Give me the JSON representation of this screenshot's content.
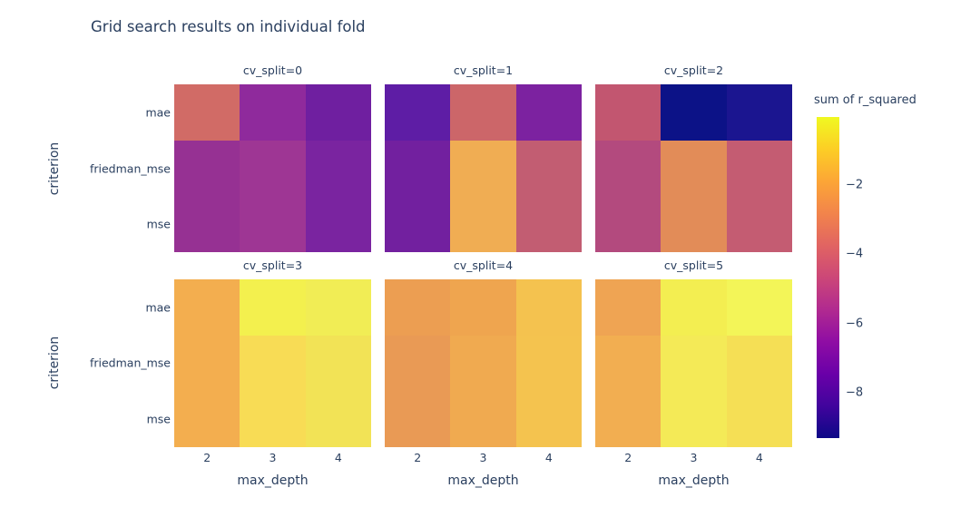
{
  "title": "Grid search results on individual fold",
  "styles": {
    "text_color": "#2a3f5f",
    "background": "#ffffff"
  },
  "axes": {
    "x_title": "max_depth",
    "y_title": "criterion",
    "x_ticks": [
      "2",
      "3",
      "4"
    ],
    "y_ticks": [
      "mae",
      "friedman_mse",
      "mse"
    ]
  },
  "colorbar": {
    "title": "sum of r_squared",
    "tick_labels": [
      "−2",
      "−4",
      "−6",
      "−8"
    ],
    "ticks": [
      -2,
      -4,
      -6,
      -8
    ],
    "gradient_top_to_bottom": [
      "#f0f921",
      "#fcce25",
      "#fca636",
      "#f2844b",
      "#e16462",
      "#cc4778",
      "#b12a90",
      "#8f0da4",
      "#6a00a8",
      "#41049d",
      "#0d0887"
    ]
  },
  "chart_data": {
    "type": "heatmap",
    "title": "Grid search results on individual fold",
    "xlabel": "max_depth",
    "ylabel": "criterion",
    "colorbar_label": "sum of r_squared",
    "colorscale": "plasma",
    "zmin": -9.3,
    "zmax": -0.05,
    "columns": [
      2,
      3,
      4
    ],
    "rows": [
      "mae",
      "friedman_mse",
      "mse"
    ],
    "facet_layout": {
      "grid": "2 rows x 3 cols",
      "shared_x": true,
      "shared_y": true
    },
    "facets": [
      {
        "label": "cv_split=0",
        "values": [
          [
            -4.4,
            -6.8,
            -7.4
          ],
          [
            -6.5,
            -6.2,
            -7.2
          ],
          [
            -6.5,
            -6.2,
            -7.2
          ]
        ],
        "colors": [
          [
            "#d16b66",
            "#8f2a9c",
            "#6f1fa0"
          ],
          [
            "#963193",
            "#9e3694",
            "#7a24a0"
          ],
          [
            "#963193",
            "#9e3694",
            "#7a24a0"
          ]
        ]
      },
      {
        "label": "cv_split=1",
        "values": [
          [
            -8.0,
            -4.5,
            -7.2
          ],
          [
            -7.4,
            -2.5,
            -5.0
          ],
          [
            -7.4,
            -2.5,
            -5.0
          ]
        ],
        "colors": [
          [
            "#5e1da5",
            "#cc6669",
            "#7c22a0"
          ],
          [
            "#72209f",
            "#f0ad53",
            "#c25d72"
          ],
          [
            "#72209f",
            "#f0ad53",
            "#c25d72"
          ]
        ]
      },
      {
        "label": "cv_split=2",
        "values": [
          [
            -5.1,
            -9.2,
            -8.9
          ],
          [
            -5.4,
            -3.4,
            -4.9
          ],
          [
            -5.4,
            -3.4,
            -4.9
          ]
        ],
        "colors": [
          [
            "#c25670",
            "#0c1287",
            "#1b1590"
          ],
          [
            "#b34a7e",
            "#e28c58",
            "#c45c72"
          ],
          [
            "#b34a7e",
            "#e28c58",
            "#c45c72"
          ]
        ]
      },
      {
        "label": "cv_split=3",
        "values": [
          [
            -2.4,
            -0.4,
            -0.5
          ],
          [
            -2.4,
            -1.2,
            -0.9
          ],
          [
            -2.4,
            -1.2,
            -0.9
          ]
        ],
        "colors": [
          [
            "#f3ae4f",
            "#f3f04e",
            "#f1ed55"
          ],
          [
            "#f3ae4f",
            "#f8dc55",
            "#f2e356"
          ],
          [
            "#f3ae4f",
            "#f8dc55",
            "#f2e356"
          ]
        ]
      },
      {
        "label": "cv_split=4",
        "values": [
          [
            -3.0,
            -2.7,
            -1.9
          ],
          [
            -3.1,
            -2.6,
            -1.9
          ],
          [
            -3.1,
            -2.6,
            -1.9
          ]
        ],
        "colors": [
          [
            "#ec9e52",
            "#efa54f",
            "#f4c24f"
          ],
          [
            "#e99a55",
            "#f0aa50",
            "#f4c34f"
          ],
          [
            "#e99a55",
            "#f0aa50",
            "#f4c34f"
          ]
        ]
      },
      {
        "label": "cv_split=5",
        "values": [
          [
            -2.8,
            -0.5,
            -0.2
          ],
          [
            -2.5,
            -0.7,
            -1.1
          ],
          [
            -2.5,
            -0.7,
            -1.1
          ]
        ],
        "colors": [
          [
            "#efa453",
            "#f3ee51",
            "#f3f558"
          ],
          [
            "#f2ae51",
            "#f4ea57",
            "#f5df55"
          ],
          [
            "#f2ae51",
            "#f4ea57",
            "#f5df55"
          ]
        ]
      }
    ]
  }
}
